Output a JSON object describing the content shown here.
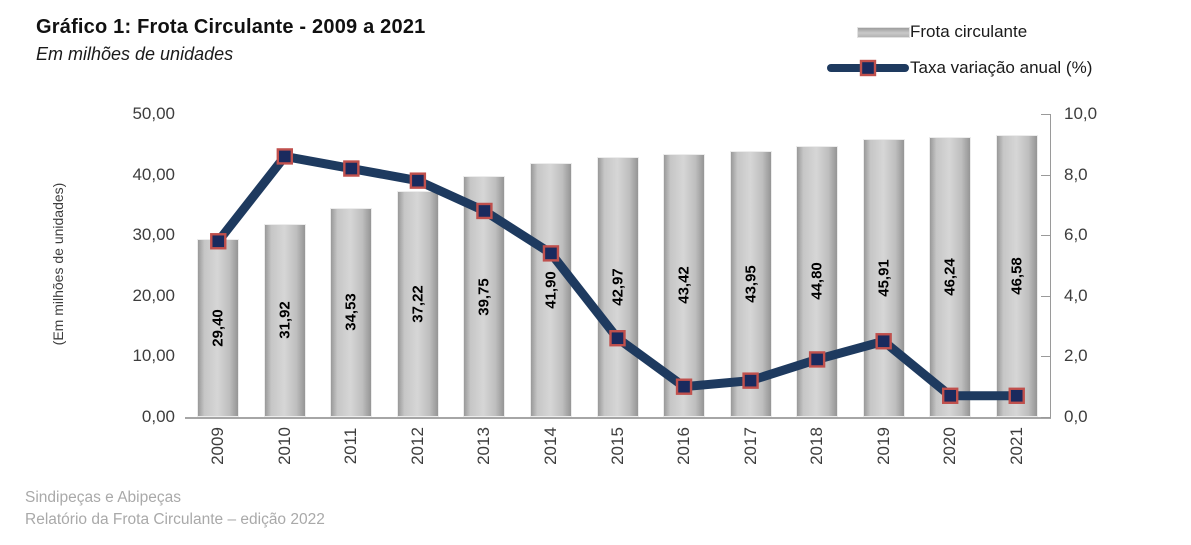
{
  "header": {
    "title": "Gráfico 1: Frota Circulante - 2009 a 2021",
    "subtitle": "Em milhões de unidades"
  },
  "legend": {
    "items": [
      {
        "label": "Frota circulante",
        "swatch": "gray-bar"
      },
      {
        "label": "Taxa variação anual (%)",
        "swatch": "navy-line-with-square-marker"
      }
    ]
  },
  "footer": {
    "line1": "Sindipeças e Abipeças",
    "line2": "Relatório da Frota Circulante – edição 2022"
  },
  "colors": {
    "bar_fill_mid": "#d6d6d6",
    "bar_fill_edge": "#999999",
    "line": "#1e3a5f",
    "marker_fill": "#1a2a5e",
    "marker_border": "#c0504d",
    "axis_text": "#3d3d3d",
    "footer_text": "#a9a9a9"
  },
  "chart_data": {
    "type": "bar",
    "title": "Gráfico 1: Frota Circulante - 2009 a 2021",
    "subtitle": "Em milhões de unidades",
    "categories": [
      "2009",
      "2010",
      "2011",
      "2012",
      "2013",
      "2014",
      "2015",
      "2016",
      "2017",
      "2018",
      "2019",
      "2020",
      "2021"
    ],
    "series": [
      {
        "name": "Frota circulante",
        "type": "bar",
        "values": [
          29.4,
          31.92,
          34.53,
          37.22,
          39.75,
          41.9,
          42.97,
          43.42,
          43.95,
          44.8,
          45.91,
          46.24,
          46.58
        ],
        "value_labels": [
          "29,40",
          "31,92",
          "34,53",
          "37,22",
          "39,75",
          "41,90",
          "42,97",
          "43,42",
          "43,95",
          "44,80",
          "45,91",
          "46,24",
          "46,58"
        ],
        "axis": "left"
      },
      {
        "name": "Taxa variação anual (%)",
        "type": "line",
        "values": [
          5.8,
          8.6,
          8.2,
          7.8,
          6.8,
          5.4,
          2.6,
          1.0,
          1.2,
          1.9,
          2.5,
          0.7,
          0.7
        ],
        "axis": "right"
      }
    ],
    "ylabel_left": "(Em milhões de unidades)",
    "ylim_left": [
      0,
      50
    ],
    "ylim_right": [
      0,
      10
    ],
    "left_ticks": [
      "0,00",
      "10,00",
      "20,00",
      "30,00",
      "40,00",
      "50,00"
    ],
    "right_ticks": [
      "0,0",
      "2,0",
      "4,0",
      "6,0",
      "8,0",
      "10,0"
    ],
    "grid": false,
    "legend_position": "top-right"
  }
}
